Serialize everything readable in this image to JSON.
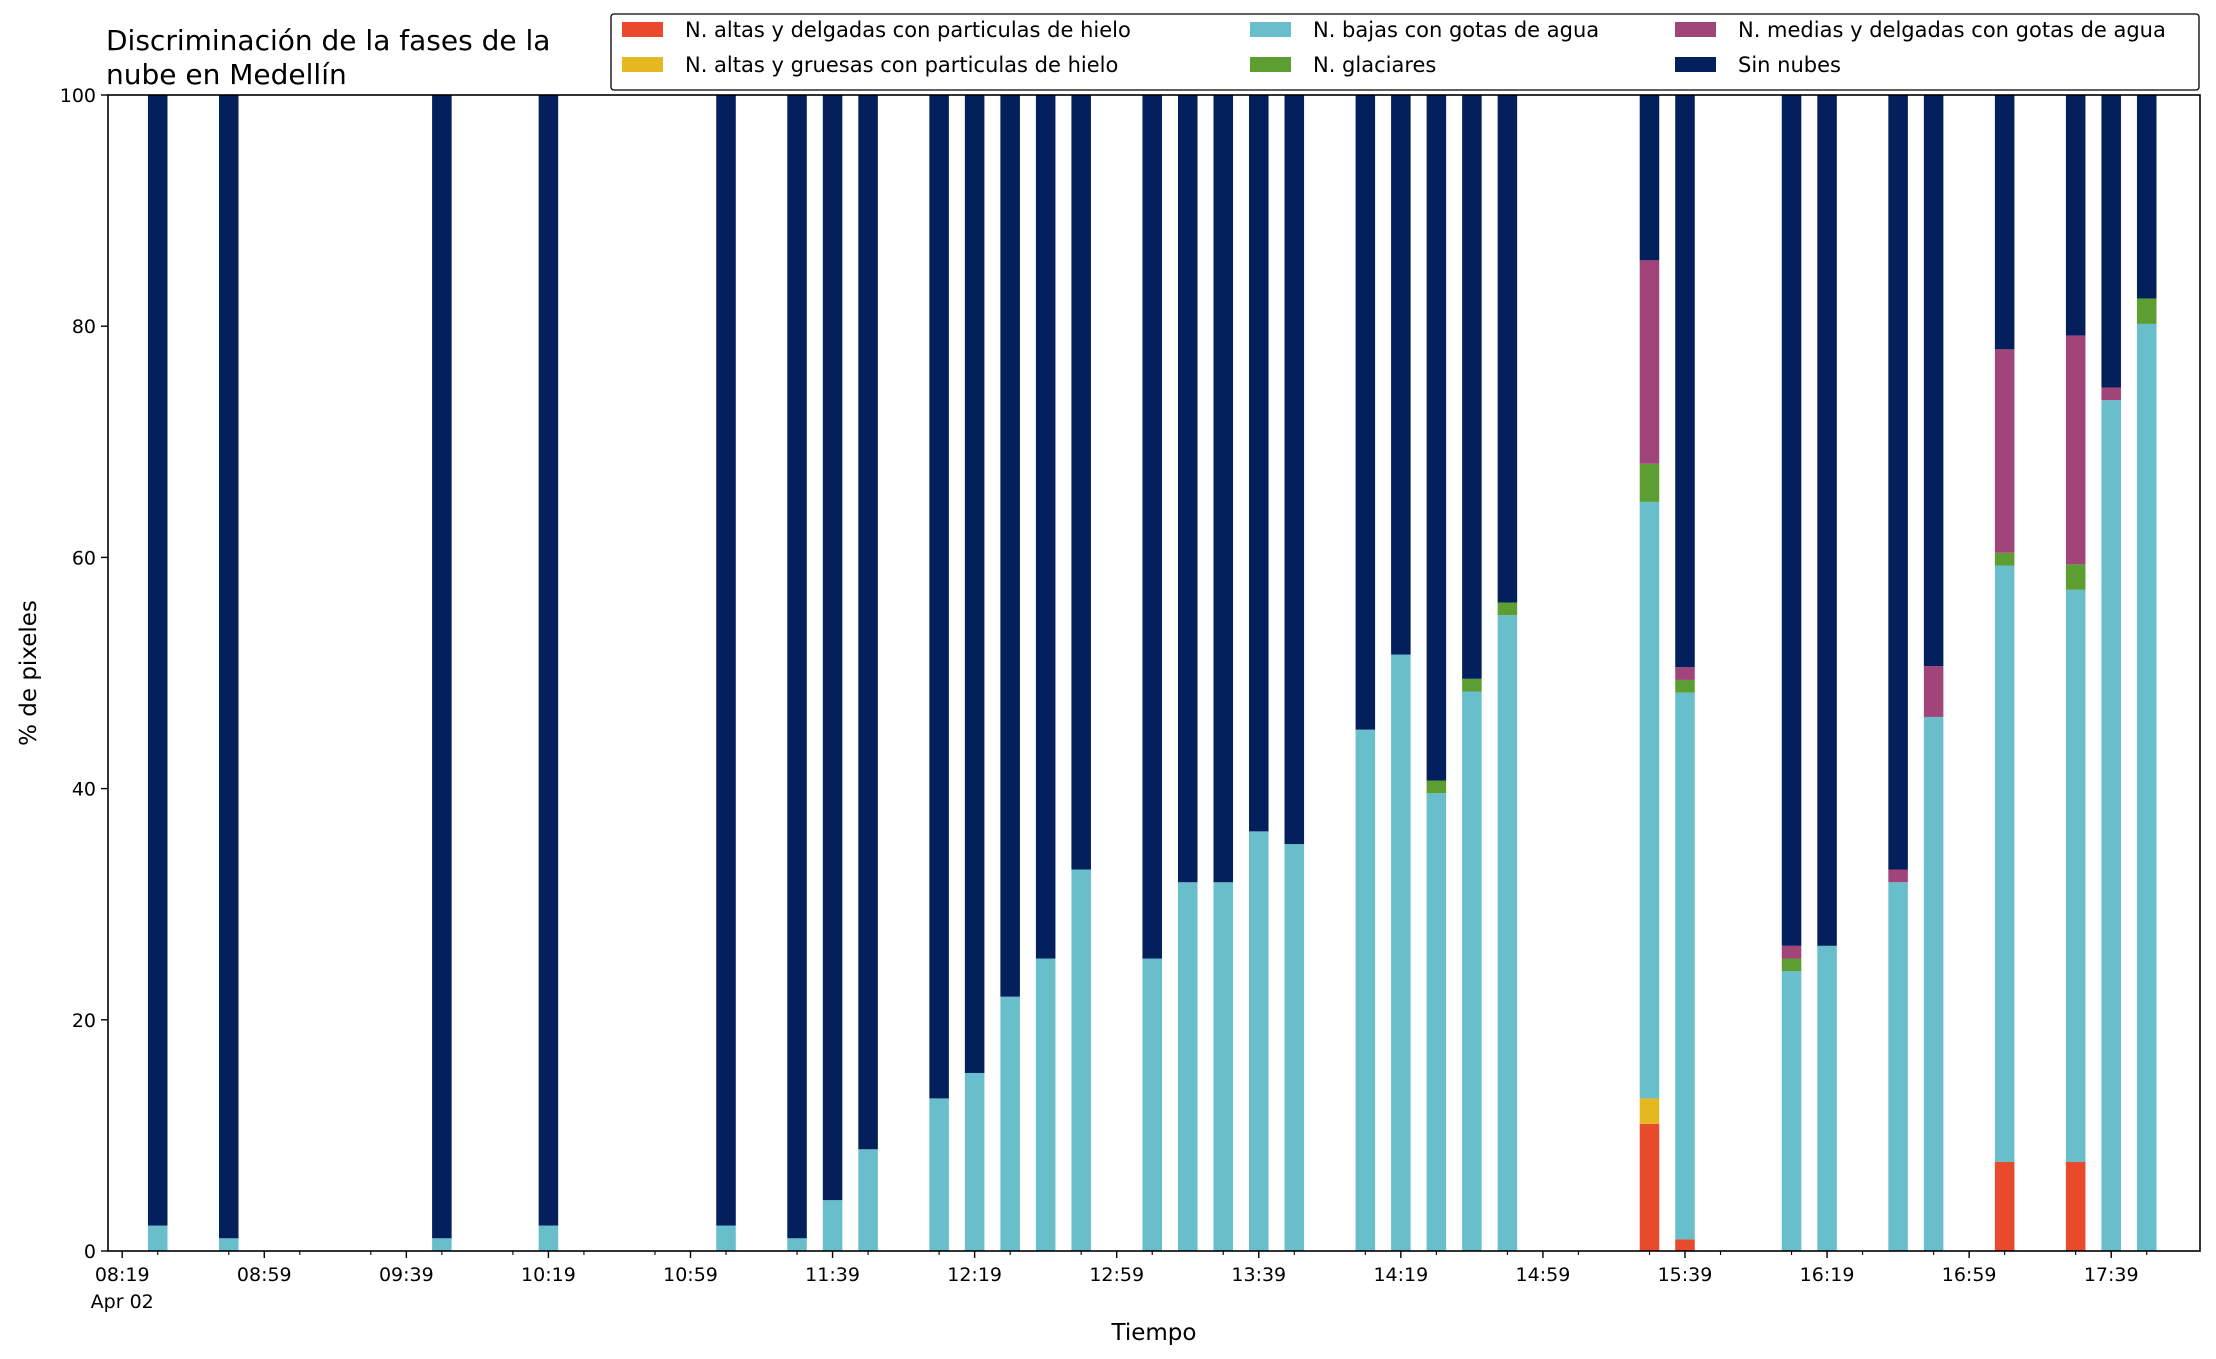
{
  "chart_data": {
    "type": "bar",
    "stacked": true,
    "title": "Discriminación de la fases de la nube en Medellín",
    "title_lines": [
      "Discriminación de la fases de la",
      "nube en Medellín"
    ],
    "xlabel": "Tiempo",
    "ylabel": "% de pixeles",
    "ylim": [
      0,
      100
    ],
    "yticks": [
      0,
      20,
      40,
      60,
      80,
      100
    ],
    "xlim_minutes_after_0819": [
      -4,
      585
    ],
    "xtick_labels": [
      "08:19",
      "08:59",
      "09:39",
      "10:19",
      "10:59",
      "11:39",
      "12:19",
      "12:59",
      "13:39",
      "14:19",
      "14:59",
      "15:39",
      "16:19",
      "16:59",
      "17:39"
    ],
    "xtick_sublabel": "Apr 02",
    "legend_position": "top-right",
    "legend_columns": 3,
    "categories": [
      "08:29",
      "08:49",
      "09:49",
      "10:19",
      "11:09",
      "11:29",
      "11:39",
      "11:49",
      "12:09",
      "12:19",
      "12:29",
      "12:39",
      "12:49",
      "13:09",
      "13:19",
      "13:29",
      "13:39",
      "13:49",
      "14:09",
      "14:19",
      "14:29",
      "14:39",
      "14:49",
      "15:29",
      "15:39",
      "16:09",
      "16:19",
      "16:39",
      "16:49",
      "17:09",
      "17:29",
      "17:39",
      "17:49"
    ],
    "series": [
      {
        "name": "N. altas y delgadas con particulas de hielo",
        "color": "#e84a2b",
        "values": [
          0,
          0,
          0,
          0,
          0,
          0,
          0,
          0,
          0,
          0,
          0,
          0,
          0,
          0,
          0,
          0,
          0,
          0,
          0,
          0,
          0,
          0,
          0,
          11,
          1,
          0,
          0,
          0,
          0,
          7.7,
          7.7,
          0,
          0
        ]
      },
      {
        "name": "N. altas y gruesas con particulas de hielo",
        "color": "#e6b820",
        "values": [
          0,
          0,
          0,
          0,
          0,
          0,
          0,
          0,
          0,
          0,
          0,
          0,
          0,
          0,
          0,
          0,
          0,
          0,
          0,
          0,
          0,
          0,
          0,
          2.2,
          0,
          0,
          0,
          0,
          0,
          0,
          0,
          0,
          0
        ]
      },
      {
        "name": "N. bajas con gotas de agua",
        "color": "#68bfcb",
        "values": [
          2.2,
          1.1,
          1.1,
          2.2,
          2.2,
          1.1,
          4.4,
          8.8,
          13.2,
          15.4,
          22,
          25.3,
          33,
          25.3,
          31.9,
          31.9,
          36.3,
          35.2,
          45.1,
          51.6,
          39.6,
          48.4,
          55,
          51.6,
          47.3,
          24.2,
          26.4,
          31.9,
          46.2,
          51.6,
          49.5,
          73.6,
          80.2
        ]
      },
      {
        "name": "N. glaciares",
        "color": "#5c9e31",
        "values": [
          0,
          0,
          0,
          0,
          0,
          0,
          0,
          0,
          0,
          0,
          0,
          0,
          0,
          0,
          0,
          0,
          0,
          0,
          0,
          0,
          1.1,
          1.1,
          1.1,
          3.3,
          1.1,
          1.1,
          0,
          0,
          0,
          1.1,
          2.2,
          0,
          2.2
        ]
      },
      {
        "name": "N. medias y delgadas con gotas de agua",
        "color": "#a1447a",
        "values": [
          0,
          0,
          0,
          0,
          0,
          0,
          0,
          0,
          0,
          0,
          0,
          0,
          0,
          0,
          0,
          0,
          0,
          0,
          0,
          0,
          0,
          0,
          0,
          17.6,
          1.1,
          1.1,
          0,
          1.1,
          4.4,
          17.6,
          19.8,
          1.1,
          0
        ]
      },
      {
        "name": "Sin nubes",
        "color": "#03205d",
        "values": [
          97.8,
          98.9,
          98.9,
          97.8,
          97.8,
          98.9,
          95.6,
          91.2,
          86.8,
          84.6,
          78,
          74.7,
          67,
          74.7,
          68.1,
          68.1,
          63.7,
          64.8,
          54.9,
          48.4,
          59.3,
          50.5,
          43.9,
          14.3,
          49.5,
          73.6,
          73.6,
          67,
          49.4,
          22,
          20.8,
          25.3,
          17.6
        ]
      }
    ]
  }
}
